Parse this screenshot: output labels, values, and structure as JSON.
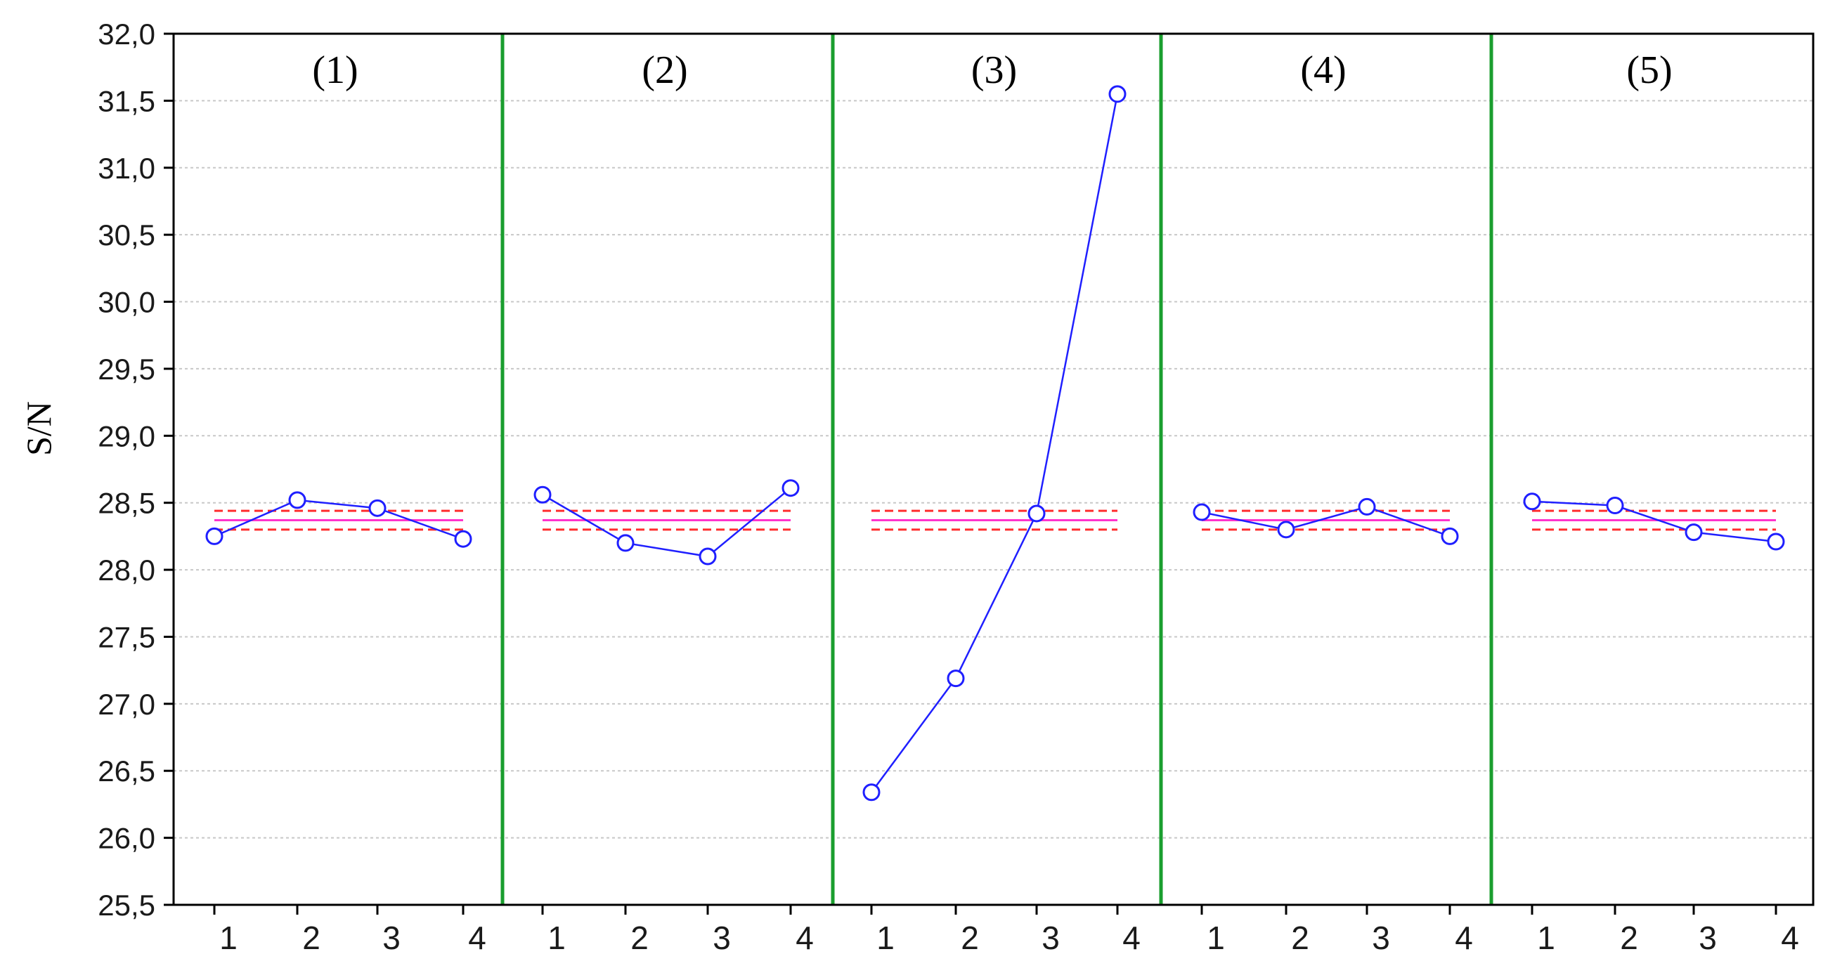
{
  "chart_data": {
    "type": "line",
    "ylabel": "S/N",
    "ylim": [
      25.5,
      32.0
    ],
    "yticks": [
      "25,5",
      "26,0",
      "26,5",
      "27,0",
      "27,5",
      "28,0",
      "28,5",
      "29,0",
      "29,5",
      "30,0",
      "30,5",
      "31,0",
      "31,5",
      "32,0"
    ],
    "grid": true,
    "panels": [
      {
        "title": "(1)",
        "x": [
          "1",
          "2",
          "3",
          "4"
        ],
        "values": [
          28.25,
          28.52,
          28.46,
          28.23
        ]
      },
      {
        "title": "(2)",
        "x": [
          "1",
          "2",
          "3",
          "4"
        ],
        "values": [
          28.56,
          28.2,
          28.1,
          28.61
        ]
      },
      {
        "title": "(3)",
        "x": [
          "1",
          "2",
          "3",
          "4"
        ],
        "values": [
          26.34,
          27.19,
          28.42,
          31.55
        ]
      },
      {
        "title": "(4)",
        "x": [
          "1",
          "2",
          "3",
          "4"
        ],
        "values": [
          28.43,
          28.3,
          28.47,
          28.25
        ]
      },
      {
        "title": "(5)",
        "x": [
          "1",
          "2",
          "3",
          "4"
        ],
        "values": [
          28.51,
          28.48,
          28.28,
          28.21
        ]
      }
    ],
    "reference_lines": {
      "mean": 28.37,
      "lower": 28.3,
      "upper": 28.44
    },
    "colors": {
      "series": "#1f1fff",
      "mean_line": "#ff33cc",
      "limit_lines": "#ff2d2d",
      "panel_divider": "#1a9e2e",
      "grid": "#c8c8c8",
      "axis": "#000000"
    }
  }
}
